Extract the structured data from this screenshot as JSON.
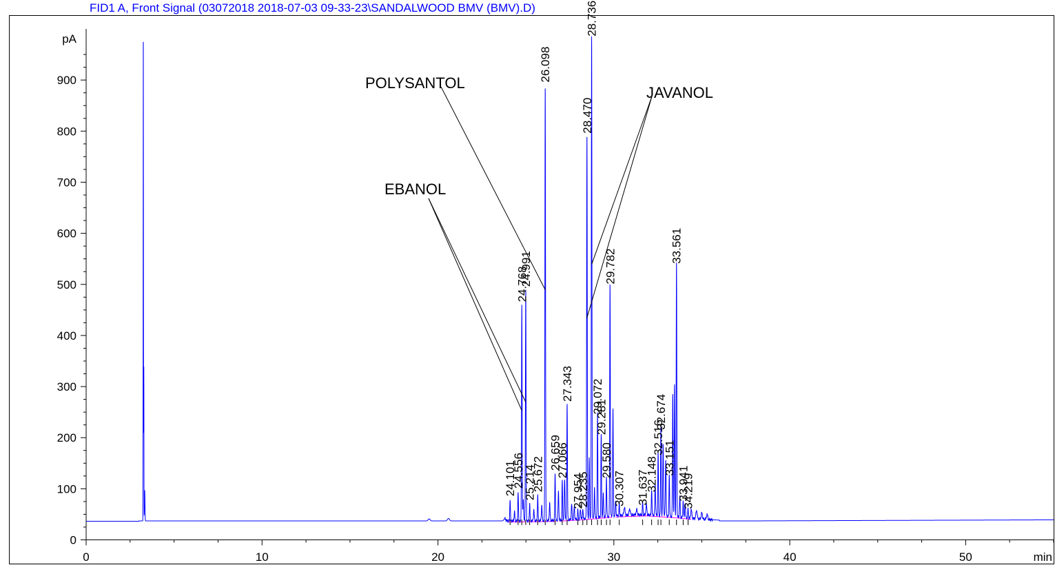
{
  "chart_data": {
    "type": "line",
    "title": "FID1 A, Front Signal (03072018 2018-07-03 09-33-23\\SANDALWOOD BMV (BMV).D)",
    "ylabel": "pA",
    "xlabel": "min",
    "xlim": [
      0,
      55
    ],
    "ylim": [
      0,
      1000
    ],
    "x_ticks": [
      0,
      10,
      20,
      30,
      40,
      50
    ],
    "y_ticks": [
      0,
      100,
      200,
      300,
      400,
      500,
      600,
      700,
      800,
      900
    ],
    "grid": false,
    "colors": {
      "trace": "#0000ff",
      "baseline": "#ff00ff",
      "title": "#0000ff",
      "axis": "#000000"
    },
    "baseline_level": 37,
    "solvent_peak": {
      "x": 3.25,
      "y": 1000
    },
    "peaks": [
      {
        "label": "24.101",
        "x": 24.101,
        "y": 80
      },
      {
        "label": "24.556",
        "x": 24.556,
        "y": 95
      },
      {
        "label": "24.768",
        "x": 24.768,
        "y": 460
      },
      {
        "label": "24.991",
        "x": 24.991,
        "y": 490
      },
      {
        "label": "25.214",
        "x": 25.214,
        "y": 72
      },
      {
        "label": "25.672",
        "x": 25.672,
        "y": 88
      },
      {
        "label": "26.098",
        "x": 26.098,
        "y": 890
      },
      {
        "label": "26.659",
        "x": 26.659,
        "y": 130
      },
      {
        "label": "27.066",
        "x": 27.066,
        "y": 115
      },
      {
        "label": "27.343",
        "x": 27.343,
        "y": 265
      },
      {
        "label": "27.954",
        "x": 27.954,
        "y": 55
      },
      {
        "label": "28.235",
        "x": 28.235,
        "y": 58
      },
      {
        "label": "28.470",
        "x": 28.47,
        "y": 790
      },
      {
        "label": "28.736",
        "x": 28.736,
        "y": 980
      },
      {
        "label": "29.072",
        "x": 29.072,
        "y": 240
      },
      {
        "label": "29.281",
        "x": 29.281,
        "y": 200
      },
      {
        "label": "29.580",
        "x": 29.58,
        "y": 115
      },
      {
        "label": "29.782",
        "x": 29.782,
        "y": 495
      },
      {
        "label": "30.307",
        "x": 30.307,
        "y": 60
      },
      {
        "label": "31.637",
        "x": 31.637,
        "y": 62
      },
      {
        "label": "32.148",
        "x": 32.148,
        "y": 88
      },
      {
        "label": "32.516",
        "x": 32.516,
        "y": 160
      },
      {
        "label": "32.674",
        "x": 32.674,
        "y": 210
      },
      {
        "label": "33.151",
        "x": 33.151,
        "y": 120
      },
      {
        "label": "33.561",
        "x": 33.561,
        "y": 535
      },
      {
        "label": "33.941",
        "x": 33.941,
        "y": 70
      },
      {
        "label": "34.219",
        "x": 34.219,
        "y": 55
      }
    ],
    "annotations": [
      {
        "text": "POLYSANTOL",
        "targets": [
          26.098
        ]
      },
      {
        "text": "JAVANOL",
        "targets": [
          28.47,
          28.736
        ]
      },
      {
        "text": "EBANOL",
        "targets": [
          24.768,
          24.991
        ]
      }
    ]
  }
}
